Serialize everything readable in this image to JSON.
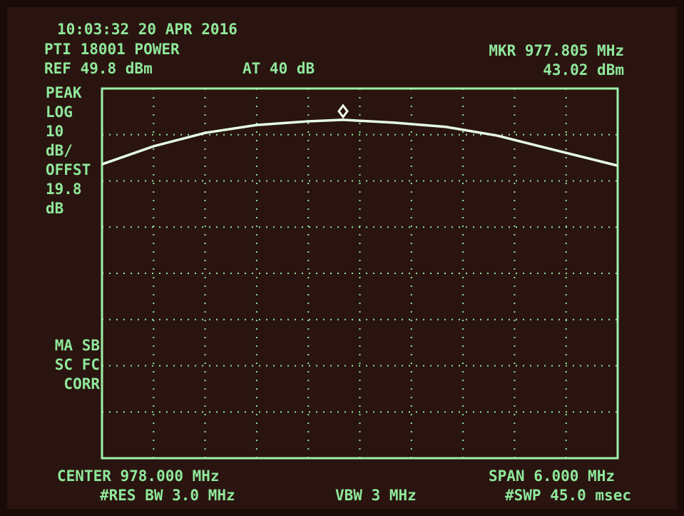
{
  "chart_data": {
    "type": "line",
    "time": "10:03:32  20 APR 2016",
    "instrument": "PTI 18001 POWER",
    "ref_level": "REF 49.8 dBm",
    "attenuation": "AT 40 dB",
    "marker_freq": "MKR 977.805 MHz",
    "marker_level": "43.02 dBm",
    "side_labels": [
      "PEAK",
      "LOG",
      "10",
      "dB/",
      "OFFST",
      "19.8",
      "dB"
    ],
    "mode_labels": [
      "MA SB",
      "SC FC",
      "CORR"
    ],
    "center": "CENTER 978.000 MHz",
    "res_bw": "#RES BW 3.0 MHz",
    "vbw": "VBW 3 MHz",
    "span": "SPAN 6.000 MHz",
    "sweep": "#SWP 45.0 msec",
    "xlim": [
      975,
      981
    ],
    "ylim": [
      -30.2,
      49.8
    ],
    "grid": true,
    "marker": {
      "x": 977.805,
      "y": 43.02
    },
    "series": [
      {
        "color": "#e6ffe6",
        "x": [
          975,
          975.6,
          976.2,
          976.8,
          977.4,
          977.805,
          978.4,
          979.0,
          979.6,
          980.2,
          981
        ],
        "values": [
          33.4,
          37.3,
          40.2,
          41.9,
          42.7,
          43.02,
          42.4,
          41.5,
          39.6,
          36.8,
          33.1
        ]
      }
    ]
  }
}
